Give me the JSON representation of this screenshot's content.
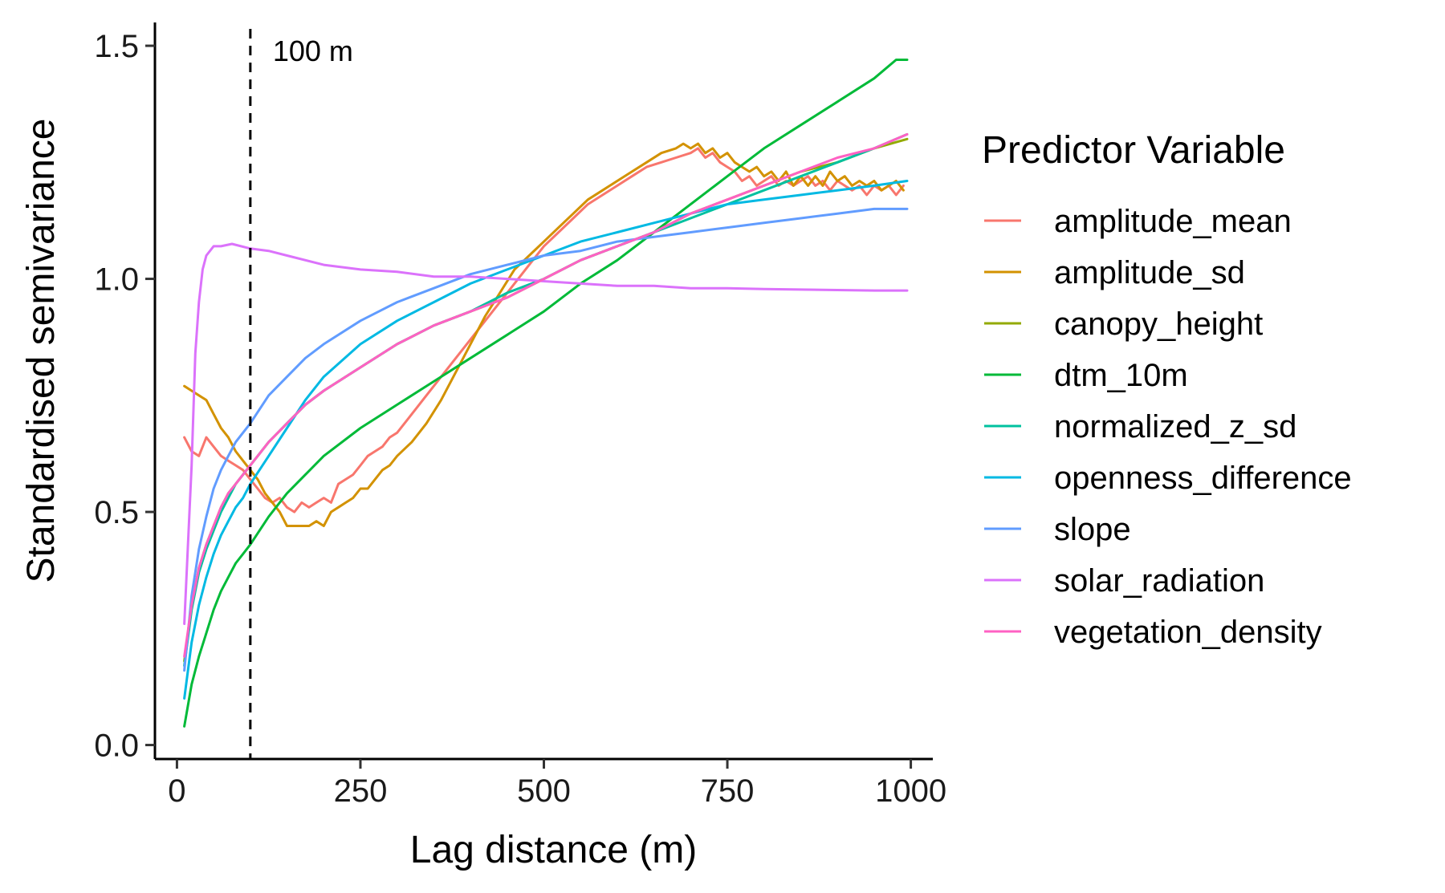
{
  "chart_data": {
    "type": "line",
    "title": "",
    "xlabel": "Lag distance (m)",
    "ylabel": "Standardised semivariance",
    "xlim": [
      -30,
      1030
    ],
    "ylim": [
      -0.03,
      1.55
    ],
    "xticks": [
      0,
      250,
      500,
      750,
      1000
    ],
    "xtick_labels": [
      "0",
      "250",
      "500",
      "750",
      "1000"
    ],
    "yticks": [
      0.0,
      0.5,
      1.0,
      1.5
    ],
    "ytick_labels": [
      "0.0",
      "0.5",
      "1.0",
      "1.5"
    ],
    "grid": false,
    "legend": {
      "title": "Predictor Variable",
      "position": "right"
    },
    "annotations": [
      {
        "type": "vline",
        "x": 100,
        "style": "dashed",
        "label": "100 m"
      }
    ],
    "series": [
      {
        "name": "amplitude_mean",
        "color": "#F8766D",
        "x": [
          10,
          20,
          30,
          40,
          50,
          60,
          70,
          80,
          90,
          100,
          110,
          120,
          130,
          140,
          150,
          160,
          170,
          180,
          190,
          200,
          210,
          220,
          230,
          240,
          250,
          260,
          270,
          280,
          290,
          300,
          320,
          340,
          360,
          380,
          400,
          420,
          440,
          460,
          480,
          500,
          520,
          540,
          560,
          580,
          600,
          620,
          640,
          660,
          680,
          700,
          710,
          720,
          730,
          740,
          750,
          760,
          770,
          780,
          790,
          800,
          810,
          820,
          830,
          840,
          850,
          860,
          870,
          880,
          890,
          900,
          910,
          920,
          930,
          940,
          950,
          960,
          970,
          980,
          990
        ],
        "y": [
          0.66,
          0.63,
          0.62,
          0.66,
          0.64,
          0.62,
          0.61,
          0.6,
          0.59,
          0.57,
          0.55,
          0.53,
          0.52,
          0.53,
          0.51,
          0.5,
          0.52,
          0.51,
          0.52,
          0.53,
          0.52,
          0.56,
          0.57,
          0.58,
          0.6,
          0.62,
          0.63,
          0.64,
          0.66,
          0.67,
          0.71,
          0.75,
          0.79,
          0.83,
          0.87,
          0.91,
          0.95,
          0.99,
          1.03,
          1.07,
          1.1,
          1.13,
          1.16,
          1.18,
          1.2,
          1.22,
          1.24,
          1.25,
          1.26,
          1.27,
          1.28,
          1.26,
          1.27,
          1.25,
          1.24,
          1.23,
          1.21,
          1.22,
          1.2,
          1.21,
          1.22,
          1.2,
          1.21,
          1.2,
          1.21,
          1.22,
          1.2,
          1.21,
          1.19,
          1.21,
          1.2,
          1.19,
          1.2,
          1.18,
          1.2,
          1.19,
          1.2,
          1.18,
          1.2
        ]
      },
      {
        "name": "amplitude_sd",
        "color": "#D39200",
        "x": [
          10,
          20,
          30,
          40,
          50,
          60,
          70,
          80,
          90,
          100,
          110,
          120,
          130,
          140,
          150,
          160,
          170,
          180,
          190,
          200,
          210,
          220,
          230,
          240,
          250,
          260,
          270,
          280,
          290,
          300,
          320,
          340,
          360,
          380,
          400,
          420,
          440,
          460,
          480,
          500,
          520,
          540,
          560,
          580,
          600,
          620,
          640,
          660,
          680,
          690,
          700,
          710,
          720,
          730,
          740,
          750,
          760,
          770,
          780,
          790,
          800,
          810,
          820,
          830,
          840,
          850,
          860,
          870,
          880,
          890,
          900,
          910,
          920,
          930,
          940,
          950,
          960,
          970,
          980,
          990
        ],
        "y": [
          0.77,
          0.76,
          0.75,
          0.74,
          0.71,
          0.68,
          0.66,
          0.63,
          0.61,
          0.59,
          0.57,
          0.54,
          0.52,
          0.5,
          0.47,
          0.47,
          0.47,
          0.47,
          0.48,
          0.47,
          0.5,
          0.51,
          0.52,
          0.53,
          0.55,
          0.55,
          0.57,
          0.59,
          0.6,
          0.62,
          0.65,
          0.69,
          0.74,
          0.8,
          0.86,
          0.92,
          0.97,
          1.02,
          1.05,
          1.08,
          1.11,
          1.14,
          1.17,
          1.19,
          1.21,
          1.23,
          1.25,
          1.27,
          1.28,
          1.29,
          1.28,
          1.29,
          1.27,
          1.28,
          1.26,
          1.27,
          1.25,
          1.24,
          1.23,
          1.24,
          1.22,
          1.23,
          1.21,
          1.23,
          1.2,
          1.22,
          1.2,
          1.22,
          1.2,
          1.23,
          1.21,
          1.22,
          1.2,
          1.21,
          1.2,
          1.21,
          1.19,
          1.2,
          1.21,
          1.19
        ]
      },
      {
        "name": "canopy_height",
        "color": "#93AA00",
        "x": [
          10,
          20,
          30,
          40,
          50,
          60,
          70,
          80,
          90,
          100,
          125,
          150,
          175,
          200,
          250,
          300,
          350,
          400,
          450,
          500,
          550,
          600,
          650,
          700,
          750,
          800,
          850,
          900,
          950,
          995
        ],
        "y": [
          0.18,
          0.3,
          0.38,
          0.43,
          0.47,
          0.51,
          0.54,
          0.56,
          0.58,
          0.6,
          0.65,
          0.69,
          0.73,
          0.76,
          0.81,
          0.86,
          0.9,
          0.93,
          0.96,
          1.0,
          1.04,
          1.07,
          1.1,
          1.14,
          1.17,
          1.2,
          1.23,
          1.25,
          1.28,
          1.3
        ]
      },
      {
        "name": "dtm_10m",
        "color": "#00BA38",
        "x": [
          10,
          20,
          30,
          40,
          50,
          60,
          70,
          80,
          90,
          100,
          125,
          150,
          175,
          200,
          250,
          300,
          350,
          400,
          450,
          500,
          550,
          600,
          650,
          700,
          750,
          800,
          850,
          900,
          950,
          980,
          995
        ],
        "y": [
          0.04,
          0.13,
          0.19,
          0.24,
          0.29,
          0.33,
          0.36,
          0.39,
          0.41,
          0.43,
          0.49,
          0.54,
          0.58,
          0.62,
          0.68,
          0.73,
          0.78,
          0.83,
          0.88,
          0.93,
          0.99,
          1.04,
          1.1,
          1.16,
          1.22,
          1.28,
          1.33,
          1.38,
          1.43,
          1.47,
          1.47
        ]
      },
      {
        "name": "normalized_z_sd",
        "color": "#00C19F",
        "x": [
          10,
          20,
          30,
          40,
          50,
          60,
          70,
          80,
          90,
          100,
          125,
          150,
          175,
          200,
          250,
          300,
          350,
          400,
          450,
          500,
          550,
          600,
          650,
          700,
          750,
          800,
          850,
          900,
          950,
          995
        ],
        "y": [
          0.17,
          0.29,
          0.37,
          0.42,
          0.46,
          0.5,
          0.53,
          0.56,
          0.58,
          0.6,
          0.65,
          0.69,
          0.73,
          0.76,
          0.81,
          0.86,
          0.9,
          0.93,
          0.97,
          1.0,
          1.04,
          1.07,
          1.1,
          1.13,
          1.16,
          1.19,
          1.22,
          1.25,
          1.28,
          1.31
        ]
      },
      {
        "name": "openness_difference",
        "color": "#00B9E3",
        "x": [
          10,
          20,
          30,
          40,
          50,
          60,
          70,
          80,
          90,
          100,
          125,
          150,
          175,
          200,
          250,
          300,
          350,
          400,
          450,
          500,
          550,
          600,
          650,
          700,
          750,
          800,
          850,
          900,
          950,
          995
        ],
        "y": [
          0.1,
          0.22,
          0.3,
          0.36,
          0.41,
          0.45,
          0.48,
          0.51,
          0.53,
          0.56,
          0.62,
          0.68,
          0.74,
          0.79,
          0.86,
          0.91,
          0.95,
          0.99,
          1.02,
          1.05,
          1.08,
          1.1,
          1.12,
          1.14,
          1.16,
          1.17,
          1.18,
          1.19,
          1.2,
          1.21
        ]
      },
      {
        "name": "slope",
        "color": "#619CFF",
        "x": [
          10,
          20,
          30,
          40,
          50,
          60,
          70,
          80,
          90,
          100,
          125,
          150,
          175,
          200,
          250,
          300,
          350,
          400,
          450,
          500,
          550,
          600,
          650,
          700,
          750,
          800,
          850,
          900,
          950,
          995
        ],
        "y": [
          0.16,
          0.32,
          0.42,
          0.49,
          0.55,
          0.59,
          0.62,
          0.65,
          0.67,
          0.69,
          0.75,
          0.79,
          0.83,
          0.86,
          0.91,
          0.95,
          0.98,
          1.01,
          1.03,
          1.05,
          1.06,
          1.08,
          1.09,
          1.1,
          1.11,
          1.12,
          1.13,
          1.14,
          1.15,
          1.15
        ]
      },
      {
        "name": "solar_radiation",
        "color": "#DB72FB",
        "x": [
          10,
          20,
          25,
          30,
          35,
          40,
          50,
          60,
          75,
          100,
          125,
          150,
          200,
          250,
          300,
          350,
          400,
          450,
          500,
          550,
          600,
          650,
          700,
          750,
          800,
          850,
          900,
          950,
          995
        ],
        "y": [
          0.26,
          0.6,
          0.84,
          0.95,
          1.02,
          1.05,
          1.07,
          1.07,
          1.075,
          1.065,
          1.06,
          1.05,
          1.03,
          1.02,
          1.015,
          1.005,
          1.005,
          1.0,
          0.995,
          0.99,
          0.985,
          0.985,
          0.98,
          0.98,
          0.978,
          0.977,
          0.976,
          0.975,
          0.975
        ]
      },
      {
        "name": "vegetation_density",
        "color": "#FF61C3",
        "x": [
          10,
          20,
          30,
          40,
          50,
          60,
          70,
          80,
          90,
          100,
          125,
          150,
          175,
          200,
          250,
          300,
          350,
          400,
          450,
          500,
          550,
          600,
          650,
          700,
          750,
          800,
          850,
          900,
          950,
          995
        ],
        "y": [
          0.19,
          0.3,
          0.38,
          0.43,
          0.47,
          0.51,
          0.54,
          0.56,
          0.58,
          0.6,
          0.65,
          0.69,
          0.73,
          0.76,
          0.81,
          0.86,
          0.9,
          0.93,
          0.96,
          1.0,
          1.04,
          1.07,
          1.1,
          1.14,
          1.17,
          1.2,
          1.23,
          1.26,
          1.28,
          1.31
        ]
      }
    ]
  }
}
